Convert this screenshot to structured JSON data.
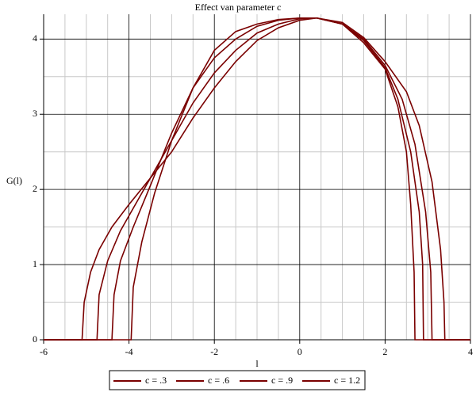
{
  "chart_data": {
    "type": "line",
    "title": "Effect van parameter c",
    "x_label": "l",
    "y_label": "G(l)",
    "xlim": [
      -6,
      4
    ],
    "ylim": [
      0,
      4.33
    ],
    "xticks": [
      -6,
      -4,
      -2,
      0,
      2,
      4
    ],
    "yticks": [
      0,
      1,
      2,
      3,
      4
    ],
    "grid": true,
    "minor_grid": true,
    "legend": "bottom",
    "series": [
      {
        "name": "c = .3",
        "color": "#7a0000",
        "x": [
          -6,
          -5.1,
          -5.05,
          -4.9,
          -4.7,
          -4.4,
          -4,
          -3.5,
          -3,
          -2.5,
          -2,
          -1.5,
          -1,
          -0.5,
          0,
          0.4,
          1,
          1.5,
          2,
          2.3,
          2.5,
          2.6,
          2.68,
          2.7,
          4
        ],
        "values": [
          0,
          0,
          0.5,
          0.9,
          1.2,
          1.5,
          1.8,
          2.15,
          2.5,
          2.95,
          3.35,
          3.7,
          3.98,
          4.15,
          4.25,
          4.28,
          4.2,
          3.95,
          3.6,
          3.1,
          2.5,
          1.8,
          0.9,
          0,
          0
        ]
      },
      {
        "name": "c = .6",
        "color": "#7a0000",
        "x": [
          -6,
          -4.75,
          -4.7,
          -4.5,
          -4.2,
          -3.8,
          -3.5,
          -3,
          -2.5,
          -2,
          -1.5,
          -1,
          -0.5,
          0,
          0.4,
          1,
          1.5,
          2,
          2.3,
          2.6,
          2.8,
          2.88,
          2.9,
          4
        ],
        "values": [
          0,
          0,
          0.6,
          1.05,
          1.45,
          1.85,
          2.15,
          2.65,
          3.15,
          3.55,
          3.85,
          4.08,
          4.2,
          4.27,
          4.28,
          4.2,
          3.98,
          3.62,
          3.2,
          2.5,
          1.7,
          1.0,
          0,
          0
        ]
      },
      {
        "name": "c = .9",
        "color": "#7a0000",
        "x": [
          -6,
          -4.4,
          -4.35,
          -4.2,
          -3.9,
          -3.5,
          -3,
          -2.5,
          -2,
          -1.5,
          -1,
          -0.5,
          0,
          0.4,
          1,
          1.5,
          2,
          2.4,
          2.7,
          2.95,
          3.07,
          3.1,
          4
        ],
        "values": [
          0,
          0,
          0.6,
          1.05,
          1.5,
          2.05,
          2.75,
          3.35,
          3.75,
          4.0,
          4.17,
          4.25,
          4.28,
          4.28,
          4.2,
          4.0,
          3.65,
          3.2,
          2.6,
          1.7,
          0.9,
          0,
          0
        ]
      },
      {
        "name": "c = 1.2",
        "color": "#7a0000",
        "x": [
          -6,
          -3.95,
          -3.9,
          -3.7,
          -3.4,
          -3,
          -2.5,
          -2,
          -1.5,
          -1,
          -0.5,
          0,
          0.4,
          1,
          1.5,
          2,
          2.5,
          2.8,
          3.1,
          3.3,
          3.38,
          3.4,
          4
        ],
        "values": [
          0,
          0,
          0.7,
          1.3,
          1.95,
          2.65,
          3.35,
          3.85,
          4.1,
          4.2,
          4.26,
          4.28,
          4.28,
          4.22,
          4.02,
          3.7,
          3.3,
          2.85,
          2.1,
          1.2,
          0.5,
          0,
          0
        ]
      }
    ]
  }
}
